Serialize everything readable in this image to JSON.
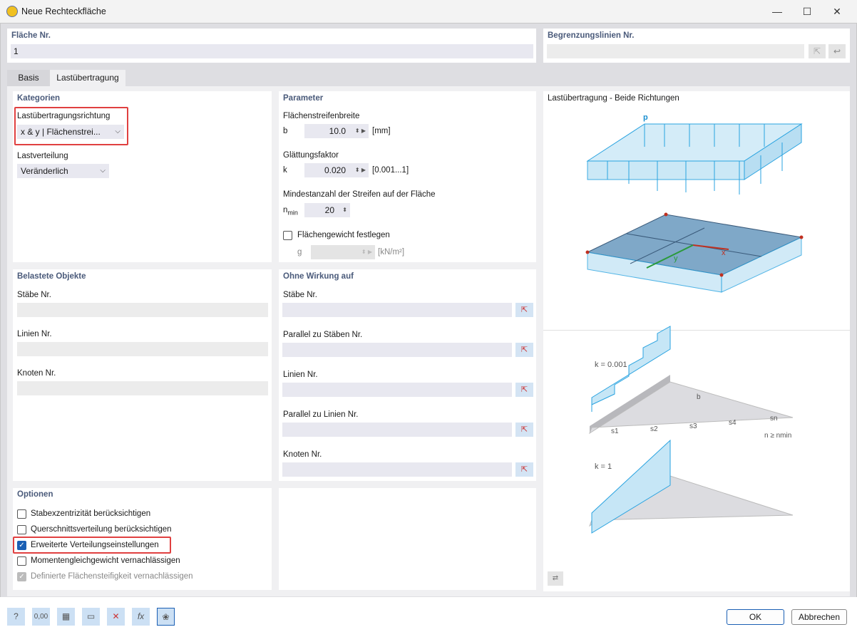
{
  "window": {
    "title": "Neue Rechteckfläche",
    "minimize": "—",
    "maximize": "☐",
    "close": "✕"
  },
  "surface": {
    "label": "Fläche Nr.",
    "value": "1"
  },
  "boundary": {
    "label": "Begrenzungslinien Nr.",
    "value": ""
  },
  "tabs": [
    {
      "label": "Basis",
      "active": false
    },
    {
      "label": "Lastübertragung",
      "active": true
    }
  ],
  "kategorien": {
    "title": "Kategorien",
    "direction_label": "Lastübertragungsrichtung",
    "direction_value": "x & y | Flächenstrei...",
    "distribution_label": "Lastverteilung",
    "distribution_value": "Veränderlich"
  },
  "parameter": {
    "title": "Parameter",
    "b_group": "Flächenstreifenbreite",
    "b_sym": "b",
    "b_value": "10.0",
    "b_unit": "[mm]",
    "k_group": "Glättungsfaktor",
    "k_sym": "k",
    "k_value": "0.020",
    "k_unit": "[0.001...1]",
    "n_group": "Mindestanzahl der Streifen auf der Fläche",
    "n_sym": "n",
    "n_sub": "min",
    "n_value": "20",
    "g_check": "Flächengewicht festlegen",
    "g_checked": false,
    "g_sym": "g",
    "g_value": "",
    "g_unit": "[kN/m²]"
  },
  "belastete": {
    "title": "Belastete Objekte",
    "items": [
      {
        "label": "Stäbe Nr.",
        "value": ""
      },
      {
        "label": "Linien Nr.",
        "value": ""
      },
      {
        "label": "Knoten Nr.",
        "value": ""
      }
    ]
  },
  "ohne": {
    "title": "Ohne Wirkung auf",
    "items": [
      {
        "label": "Stäbe Nr.",
        "value": ""
      },
      {
        "label": "Parallel zu Stäben Nr.",
        "value": ""
      },
      {
        "label": "Linien Nr.",
        "value": ""
      },
      {
        "label": "Parallel zu Linien Nr.",
        "value": ""
      },
      {
        "label": "Knoten Nr.",
        "value": ""
      }
    ]
  },
  "optionen": {
    "title": "Optionen",
    "items": [
      {
        "label": "Stabexzentrizität berücksichtigen",
        "checked": false,
        "disabled": false
      },
      {
        "label": "Querschnittsverteilung berücksichtigen",
        "checked": false,
        "disabled": false
      },
      {
        "label": "Erweiterte Verteilungseinstellungen",
        "checked": true,
        "disabled": false
      },
      {
        "label": "Momentengleichgewicht vernachlässigen",
        "checked": false,
        "disabled": false
      },
      {
        "label": "Definierte Flächensteifigkeit vernachlässigen",
        "checked": true,
        "disabled": true
      }
    ]
  },
  "diagram": {
    "title": "Lastübertragung - Beide Richtungen",
    "p": "p",
    "x": "x",
    "y": "y",
    "k1": "k = 0.001",
    "k2": "k = 1",
    "b": "b",
    "s1": "s1",
    "s2": "s2",
    "s3": "s3",
    "s4": "s4",
    "sn": "sn",
    "n_rule": "n ≥ nmin"
  },
  "colors": {
    "accent": "#1a5fb4",
    "load": "#29a3e0",
    "load_fill": "#c6e6f6",
    "highlight": "#e04040"
  },
  "footer": {
    "icons": [
      "help-icon",
      "decimal-places-icon",
      "colors-icon",
      "display-icon",
      "select-object-icon",
      "formula-icon",
      "ai-brain-icon"
    ],
    "ok": "OK",
    "cancel": "Abbrechen"
  }
}
